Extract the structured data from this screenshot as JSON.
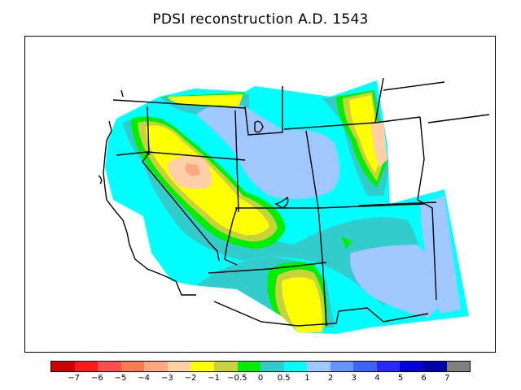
{
  "title": "PDSI reconstruction A.D. 1543",
  "legend": {
    "colors": [
      "#cc0000",
      "#ff1a1a",
      "#ff4d4d",
      "#ff7a4d",
      "#ffa880",
      "#ffd0a8",
      "#ffff00",
      "#c8d23c",
      "#00ee00",
      "#33cccc",
      "#00ffff",
      "#a0c8ff",
      "#6495ff",
      "#3c64ff",
      "#2828ff",
      "#0000dd",
      "#0000aa",
      "#808080"
    ],
    "ticks": [
      "−7",
      "−6",
      "−5",
      "−4",
      "−3",
      "−2",
      "−1",
      "−0.5",
      "0",
      "0.5",
      "1",
      "2",
      "3",
      "4",
      "5",
      "6",
      "7"
    ]
  },
  "map": {
    "region": "Western United States",
    "variable": "PDSI",
    "year": "1543"
  }
}
